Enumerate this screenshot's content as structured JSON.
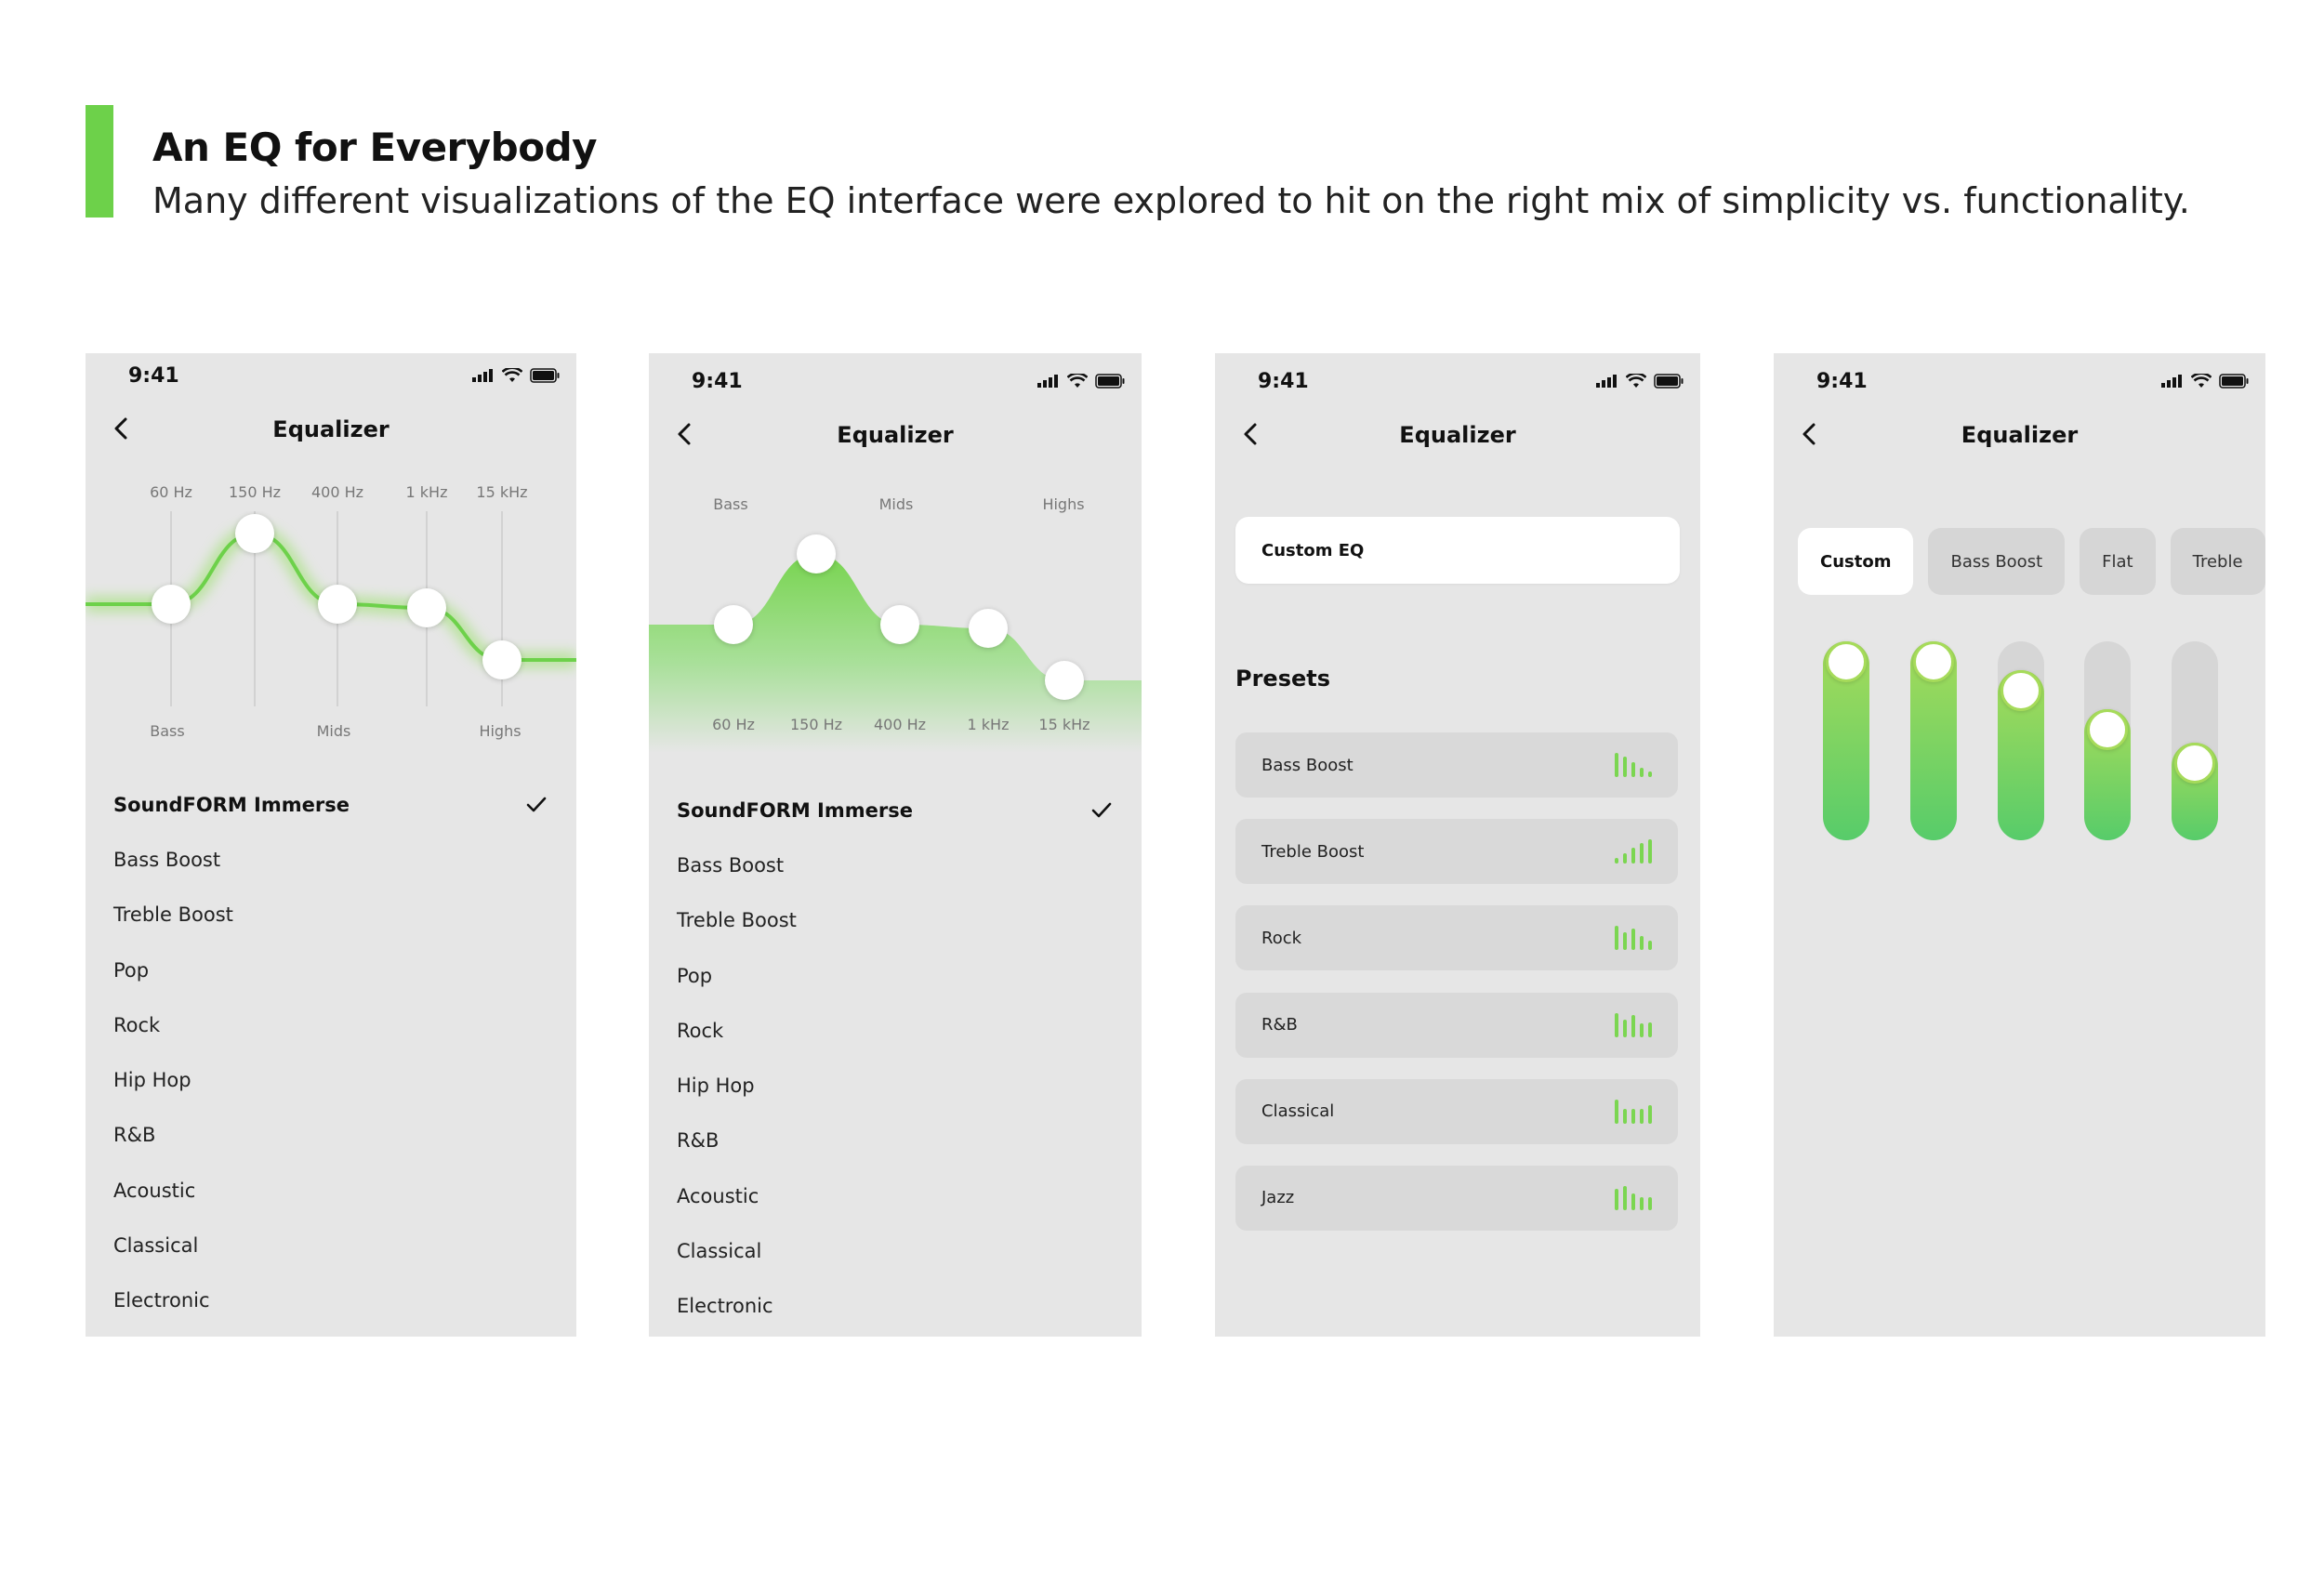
{
  "header": {
    "title": "An EQ for Everybody",
    "subtitle": "Many different visualizations of the EQ interface were explored to hit on the right mix of simplicity vs. functionality."
  },
  "colors": {
    "accent": "#6dd14a",
    "screen_bg": "#e6e6e6",
    "green_light": "#a6db5a",
    "green_dark": "#57cc6a"
  },
  "status": {
    "time": "9:41"
  },
  "screen_title": "Equalizer",
  "screen1": {
    "freqs": [
      "60 Hz",
      "150 Hz",
      "400 Hz",
      "1 kHz",
      "15 kHz"
    ],
    "bands": [
      "Bass",
      "Mids",
      "Highs"
    ],
    "levels": [
      0.5,
      0.88,
      0.5,
      0.48,
      0.2
    ]
  },
  "screen2": {
    "bands": [
      "Bass",
      "Mids",
      "Highs"
    ],
    "freqs": [
      "60 Hz",
      "150 Hz",
      "400 Hz",
      "1 kHz",
      "15 kHz"
    ],
    "levels": [
      0.5,
      0.88,
      0.5,
      0.48,
      0.2
    ]
  },
  "presets": {
    "active": "SoundFORM Immerse",
    "items": [
      "Bass Boost",
      "Treble Boost",
      "Pop",
      "Rock",
      "Hip Hop",
      "R&B",
      "Acoustic",
      "Classical",
      "Electronic"
    ]
  },
  "screen3": {
    "custom_label": "Custom EQ",
    "section_title": "Presets",
    "cards": [
      {
        "label": "Bass Boost",
        "bars": [
          1.0,
          0.85,
          0.6,
          0.4,
          0.25
        ]
      },
      {
        "label": "Treble Boost",
        "bars": [
          0.25,
          0.45,
          0.65,
          0.85,
          1.0
        ]
      },
      {
        "label": "Rock",
        "bars": [
          1.0,
          0.75,
          0.9,
          0.6,
          0.4
        ]
      },
      {
        "label": "R&B",
        "bars": [
          1.0,
          0.7,
          0.9,
          0.55,
          0.6
        ]
      },
      {
        "label": "Classical",
        "bars": [
          1.0,
          0.6,
          0.6,
          0.6,
          0.75
        ]
      },
      {
        "label": "Jazz",
        "bars": [
          0.9,
          1.0,
          0.7,
          0.55,
          0.55
        ]
      }
    ]
  },
  "screen4": {
    "chips": [
      "Custom",
      "Bass Boost",
      "Flat",
      "Treble"
    ],
    "selected": "Custom",
    "levels": [
      1.0,
      1.0,
      0.82,
      0.57,
      0.36
    ]
  }
}
